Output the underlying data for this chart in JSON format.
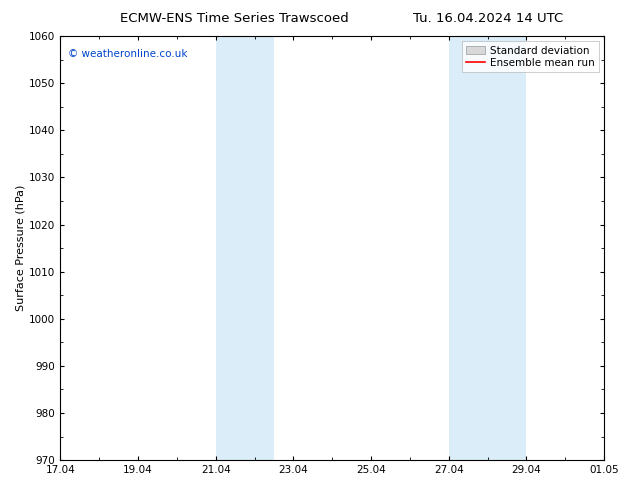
{
  "title_left": "ECMW-ENS Time Series Trawscoed",
  "title_right": "Tu. 16.04.2024 14 UTC",
  "ylabel": "Surface Pressure (hPa)",
  "ylim": [
    970,
    1060
  ],
  "yticks": [
    970,
    980,
    990,
    1000,
    1010,
    1020,
    1030,
    1040,
    1050,
    1060
  ],
  "xtick_labels": [
    "17.04",
    "19.04",
    "21.04",
    "23.04",
    "25.04",
    "27.04",
    "29.04",
    "01.05"
  ],
  "xtick_positions": [
    0,
    2,
    4,
    6,
    8,
    10,
    12,
    14
  ],
  "shaded_regions": [
    {
      "x_start": 4.0,
      "x_end": 5.5,
      "color": "#daedf8"
    },
    {
      "x_start": 10.0,
      "x_end": 12.0,
      "color": "#daedf8"
    }
  ],
  "watermark_text": "© weatheronline.co.uk",
  "watermark_color": "#0044cc",
  "watermark_fontsize": 7.5,
  "legend_std_dev_color": "#d8d8d8",
  "legend_mean_color": "#ff0000",
  "bg_color": "#ffffff",
  "border_color": "#000000",
  "title_fontsize": 9.5,
  "axis_label_fontsize": 8,
  "tick_label_fontsize": 7.5
}
